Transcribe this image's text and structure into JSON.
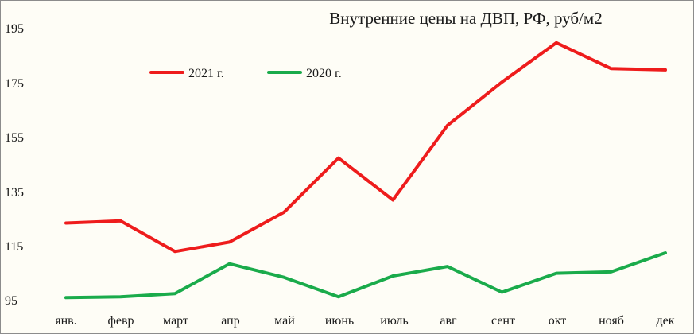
{
  "chart_data": {
    "type": "line",
    "title": "Внутренние цены на ДВП, РФ, руб/м2",
    "xlabel": "",
    "ylabel": "",
    "categories": [
      "янв.",
      "февр",
      "март",
      "апр",
      "май",
      "июнь",
      "июль",
      "авг",
      "сент",
      "окт",
      "нояб",
      "дек"
    ],
    "yticks": [
      "195",
      "175",
      "155",
      "135",
      "115",
      "95"
    ],
    "ylim": [
      95,
      195
    ],
    "grid": false,
    "legend": "top-left",
    "series": [
      {
        "name": "2021 г.",
        "color": "#ee1c1c",
        "values": [
          123,
          123.8,
          112.5,
          116,
          127,
          147,
          131.5,
          159,
          175,
          189.5,
          180,
          179.5
        ]
      },
      {
        "name": "2020 г.",
        "color": "#1aab4b",
        "values": [
          95.5,
          95.8,
          97,
          108,
          103,
          95.8,
          103.5,
          107,
          97.5,
          104.5,
          105,
          112
        ]
      }
    ]
  }
}
